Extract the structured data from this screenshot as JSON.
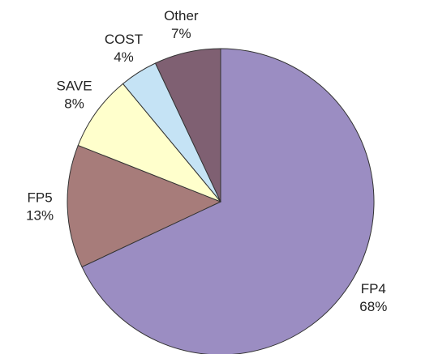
{
  "chart_data": {
    "type": "pie",
    "categories": [
      "FP4",
      "FP5",
      "SAVE",
      "COST",
      "Other"
    ],
    "values": [
      68,
      13,
      8,
      4,
      7
    ],
    "value_labels": [
      "68%",
      "13%",
      "8%",
      "4%",
      "7%"
    ],
    "colors": [
      "#9b8dc2",
      "#a77c7a",
      "#ffffcc",
      "#c5e3f5",
      "#7f6072"
    ]
  }
}
